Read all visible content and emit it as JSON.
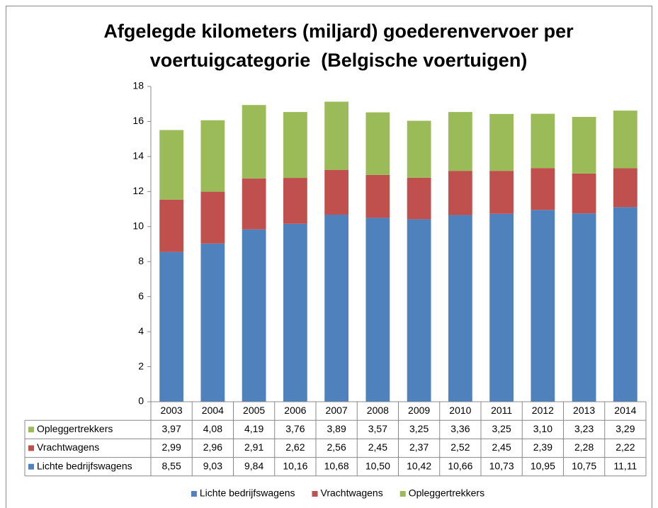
{
  "chart_data": {
    "type": "stacked-bar",
    "title": [
      "Afgelegde kilometers (miljard) goederenvervoer per",
      "voertuigcategorie  (Belgische voertuigen)"
    ],
    "categories": [
      "2003",
      "2004",
      "2005",
      "2006",
      "2007",
      "2008",
      "2009",
      "2010",
      "2011",
      "2012",
      "2013",
      "2014"
    ],
    "series": [
      {
        "name": "Lichte bedrijfswagens",
        "color": "#4f81bd",
        "values": [
          8.55,
          9.03,
          9.84,
          10.16,
          10.68,
          10.5,
          10.42,
          10.66,
          10.73,
          10.95,
          10.75,
          11.11
        ],
        "value_labels": [
          "8,55",
          "9,03",
          "9,84",
          "10,16",
          "10,68",
          "10,50",
          "10,42",
          "10,66",
          "10,73",
          "10,95",
          "10,75",
          "11,11"
        ]
      },
      {
        "name": "Vrachtwagens",
        "color": "#c0504d",
        "values": [
          2.99,
          2.96,
          2.91,
          2.62,
          2.56,
          2.45,
          2.37,
          2.52,
          2.45,
          2.39,
          2.28,
          2.22
        ],
        "value_labels": [
          "2,99",
          "2,96",
          "2,91",
          "2,62",
          "2,56",
          "2,45",
          "2,37",
          "2,52",
          "2,45",
          "2,39",
          "2,28",
          "2,22"
        ]
      },
      {
        "name": "Opleggertrekkers",
        "color": "#9bbb59",
        "values": [
          3.97,
          4.08,
          4.19,
          3.76,
          3.89,
          3.57,
          3.25,
          3.36,
          3.25,
          3.1,
          3.23,
          3.29
        ],
        "value_labels": [
          "3,97",
          "4,08",
          "4,19",
          "3,76",
          "3,89",
          "3,57",
          "3,25",
          "3,36",
          "3,25",
          "3,10",
          "3,23",
          "3,29"
        ]
      }
    ],
    "ylim": [
      0,
      18
    ],
    "yticks": [
      0,
      2,
      4,
      6,
      8,
      10,
      12,
      14,
      16,
      18
    ],
    "grid": false,
    "legend": "bottom"
  }
}
